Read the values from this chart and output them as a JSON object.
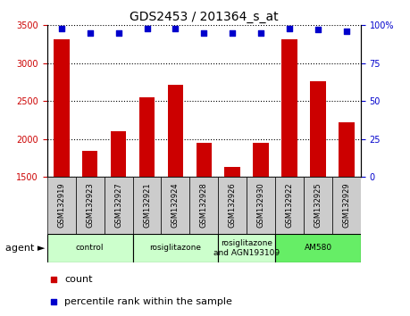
{
  "title": "GDS2453 / 201364_s_at",
  "samples": [
    "GSM132919",
    "GSM132923",
    "GSM132927",
    "GSM132921",
    "GSM132924",
    "GSM132928",
    "GSM132926",
    "GSM132930",
    "GSM132922",
    "GSM132925",
    "GSM132929"
  ],
  "counts": [
    3310,
    1840,
    2100,
    2550,
    2720,
    1950,
    1630,
    1950,
    3310,
    2760,
    2220
  ],
  "percentiles": [
    98,
    95,
    95,
    98,
    98,
    95,
    95,
    95,
    98,
    97,
    96
  ],
  "ylim_left": [
    1500,
    3500
  ],
  "ylim_right": [
    0,
    100
  ],
  "yticks_left": [
    1500,
    2000,
    2500,
    3000,
    3500
  ],
  "yticks_right": [
    0,
    25,
    50,
    75,
    100
  ],
  "bar_color": "#cc0000",
  "scatter_color": "#0000cc",
  "grid_color": "#000000",
  "agent_groups": [
    {
      "label": "control",
      "start": 0,
      "end": 3,
      "color": "#ccffcc"
    },
    {
      "label": "rosiglitazone",
      "start": 3,
      "end": 6,
      "color": "#ccffcc"
    },
    {
      "label": "rosiglitazone\nand AGN193109",
      "start": 6,
      "end": 8,
      "color": "#ccffcc"
    },
    {
      "label": "AM580",
      "start": 8,
      "end": 11,
      "color": "#66ee66"
    }
  ],
  "legend_items": [
    {
      "label": "count",
      "color": "#cc0000"
    },
    {
      "label": "percentile rank within the sample",
      "color": "#0000cc"
    }
  ],
  "bar_width": 0.55,
  "agent_label": "agent",
  "background_color": "#ffffff",
  "plot_bg_color": "#ffffff",
  "left_label_color": "#cc0000",
  "right_label_color": "#0000cc",
  "tick_bg_color": "#cccccc",
  "title_fontsize": 10,
  "tick_fontsize": 7,
  "label_fontsize": 8
}
